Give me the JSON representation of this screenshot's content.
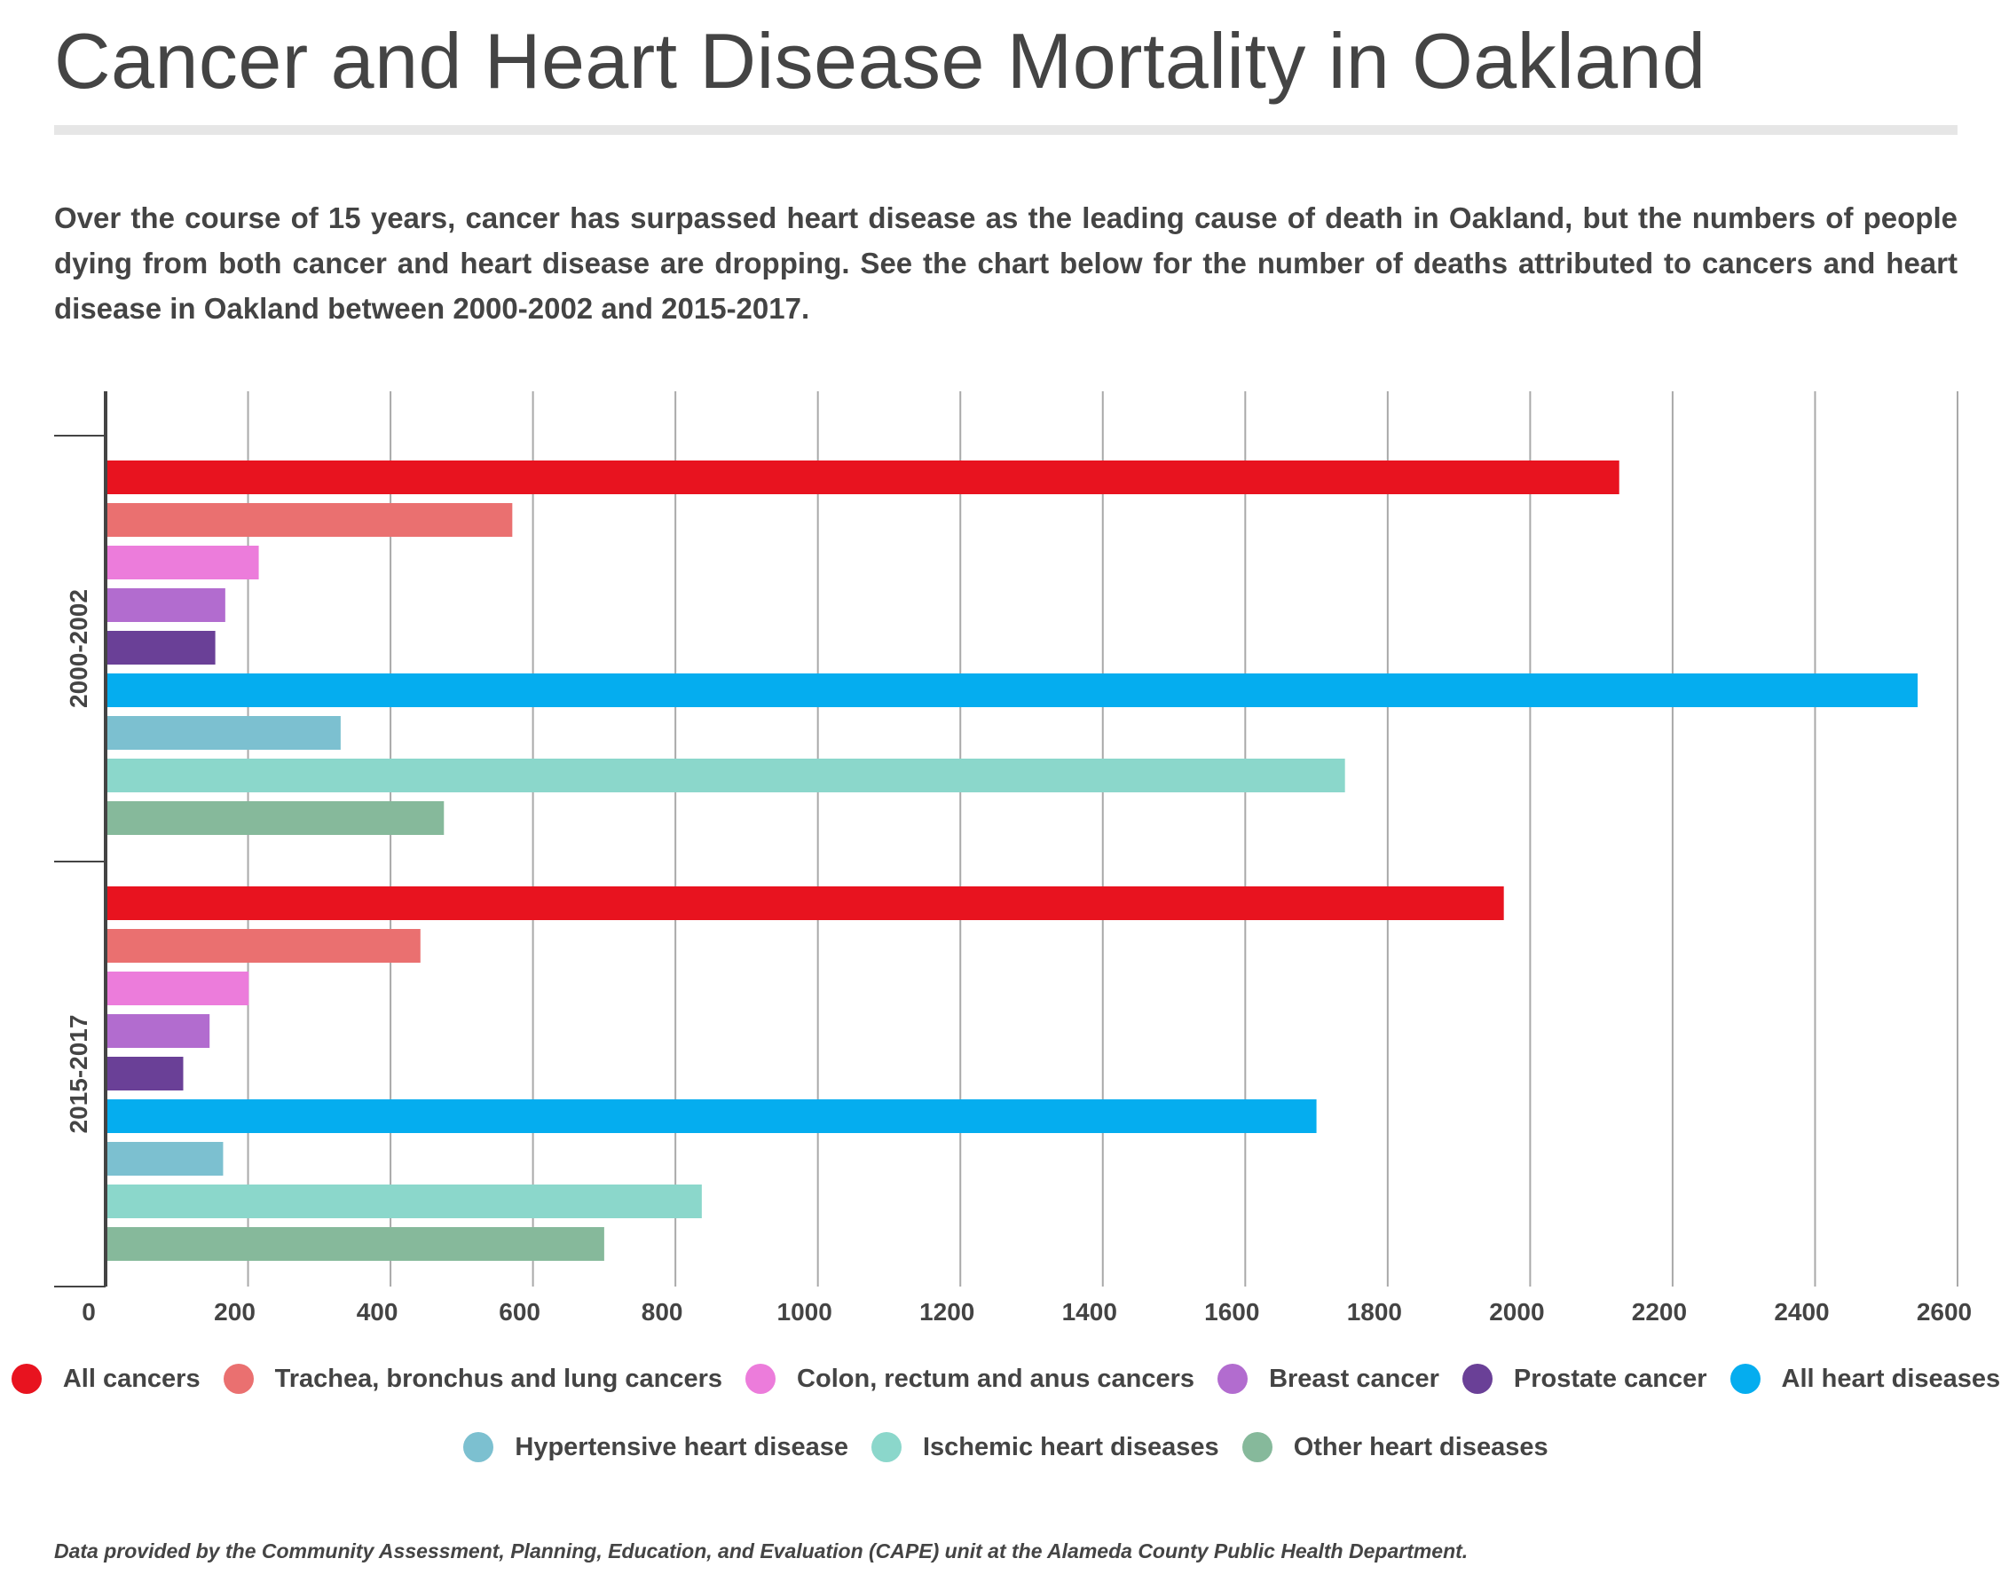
{
  "title": "Cancer and Heart Disease Mortality in Oakland",
  "intro": "Over the course of 15 years, cancer has surpassed heart disease as the leading cause of death in Oakland, but the numbers of people dying from both cancer and heart disease are dropping. See the chart below for the number of deaths attributed to cancers and heart disease in Oakland between 2000-2002 and 2015-2017.",
  "source_note": "Data provided by the Community Assessment, Planning, Education, and Evaluation (CAPE) unit at the Alameda County Public Health Department.",
  "chart_data": {
    "type": "bar",
    "orientation": "horizontal",
    "categories": [
      "2000-2002",
      "2015-2017"
    ],
    "xlim": [
      0,
      2600
    ],
    "x_ticks": [
      0,
      200,
      400,
      600,
      800,
      1000,
      1200,
      1400,
      1600,
      1800,
      2000,
      2200,
      2400,
      2600
    ],
    "grid": "vertical",
    "legend_position": "bottom",
    "series": [
      {
        "name": "All cancers",
        "color": "#e8131f",
        "values": [
          2125,
          1963
        ]
      },
      {
        "name": "Trachea, bronchus and lung cancers",
        "color": "#ea7070",
        "values": [
          571,
          442
        ]
      },
      {
        "name": "Colon, rectum and anus cancers",
        "color": "#ec7cdb",
        "values": [
          215,
          201
        ]
      },
      {
        "name": "Breast cancer",
        "color": "#b26ccf",
        "values": [
          168,
          146
        ]
      },
      {
        "name": "Prostate cancer",
        "color": "#6a4097",
        "values": [
          154,
          109
        ]
      },
      {
        "name": "All heart diseases",
        "color": "#05adef",
        "values": [
          2544,
          1700
        ]
      },
      {
        "name": "Hypertensive heart disease",
        "color": "#7cc0d0",
        "values": [
          330,
          165
        ]
      },
      {
        "name": "Ischemic heart diseases",
        "color": "#8bd7cb",
        "values": [
          1740,
          837
        ]
      },
      {
        "name": "Other heart diseases",
        "color": "#86b99b",
        "values": [
          475,
          700
        ]
      }
    ]
  }
}
